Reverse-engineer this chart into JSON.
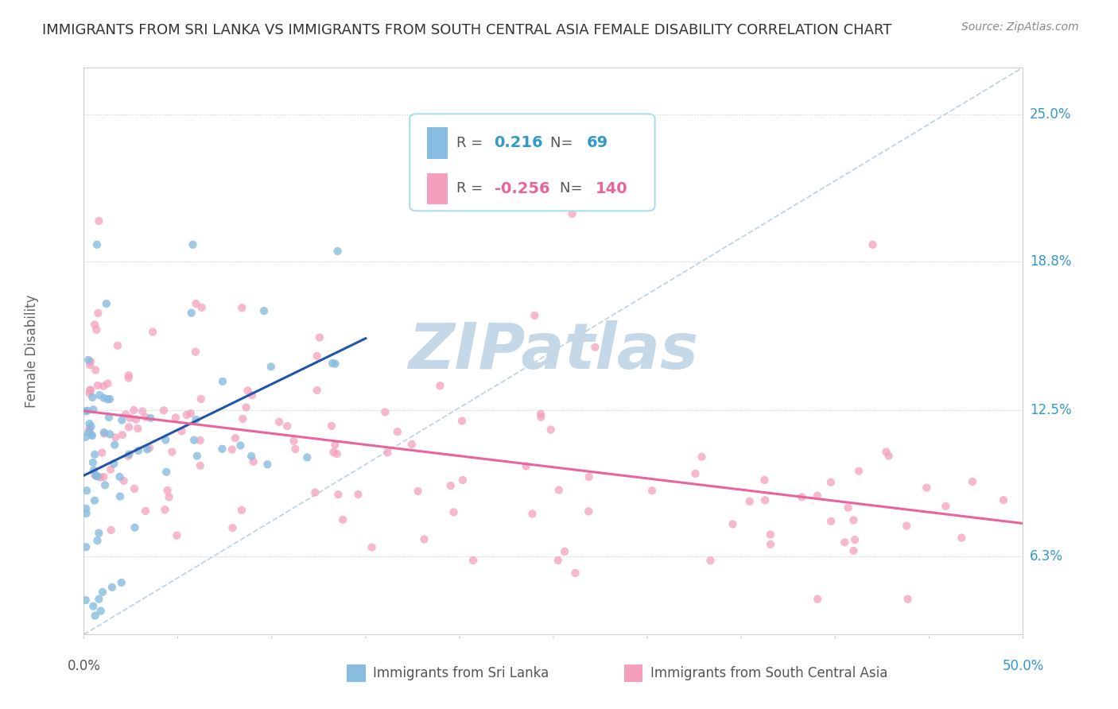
{
  "title": "IMMIGRANTS FROM SRI LANKA VS IMMIGRANTS FROM SOUTH CENTRAL ASIA FEMALE DISABILITY CORRELATION CHART",
  "source": "Source: ZipAtlas.com",
  "color_blue": "#88bce0",
  "color_pink": "#f4a0bc",
  "color_blue_line": "#2255aa",
  "color_pink_line": "#e8649a",
  "color_diag": "#b8cfe0",
  "watermark_color": "#c5d8e8",
  "background_color": "#ffffff",
  "xmin": 0.0,
  "xmax": 50.0,
  "ymin": 3.0,
  "ymax": 27.0,
  "y_ticks": [
    6.3,
    12.5,
    18.8,
    25.0
  ],
  "y_labels": [
    "6.3%",
    "12.5%",
    "18.8%",
    "25.0%"
  ],
  "legend1_r": "0.216",
  "legend1_n": "69",
  "legend2_r": "-0.256",
  "legend2_n": "140",
  "legend_color_text": "#555555",
  "legend_color_val1": "#3399cc",
  "legend_color_val2": "#e8649a",
  "right_tick_color": "#3399cc",
  "ylabel": "Female Disability"
}
